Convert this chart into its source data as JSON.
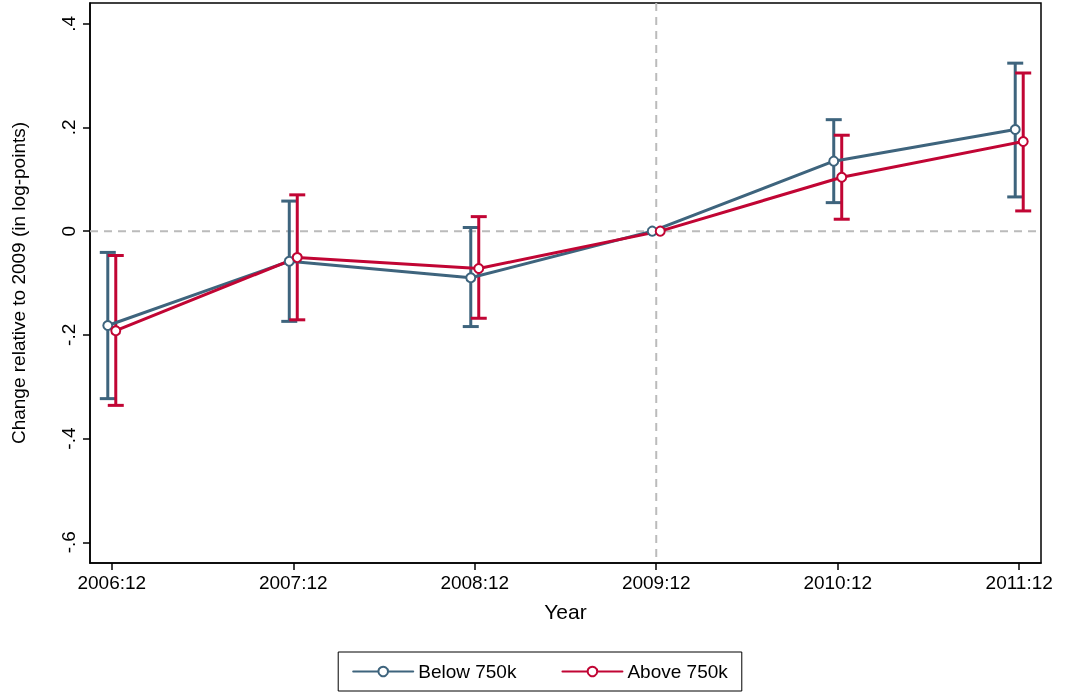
{
  "chart_data": {
    "type": "line",
    "xlabel": "Year",
    "ylabel": "Change relative to 2009 (in log-points)",
    "categories": [
      "2006:12",
      "2007:12",
      "2008:12",
      "2009:12",
      "2010:12",
      "2011:12"
    ],
    "series": [
      {
        "name": "Below 750k",
        "color": "#3e647d",
        "values": [
          -0.182,
          -0.058,
          -0.09,
          0,
          0.135,
          0.196
        ],
        "errors": [
          [
            -0.323,
            -0.041
          ],
          [
            -0.174,
            0.058
          ],
          [
            -0.184,
            0.007
          ],
          null,
          [
            0.055,
            0.215
          ],
          [
            0.066,
            0.324
          ]
        ]
      },
      {
        "name": "Above 750k",
        "color": "#c10534",
        "values": [
          -0.192,
          -0.051,
          -0.072,
          0,
          0.104,
          0.173
        ],
        "errors": [
          [
            -0.336,
            -0.047
          ],
          [
            -0.171,
            0.07
          ],
          [
            -0.168,
            0.028
          ],
          null,
          [
            0.023,
            0.185
          ],
          [
            0.039,
            0.305
          ]
        ]
      }
    ],
    "ylim": [
      -0.64,
      0.44
    ],
    "yticks": [
      {
        "value": -0.6,
        "label": "-.6"
      },
      {
        "value": -0.4,
        "label": "-.4"
      },
      {
        "value": -0.2,
        "label": "-.2"
      },
      {
        "value": 0,
        "label": "0"
      },
      {
        "value": 0.2,
        "label": ".2"
      },
      {
        "value": 0.4,
        "label": ".4"
      }
    ],
    "ref_lines": [
      {
        "axis": "y",
        "value": 0,
        "color": "#bbbbbb",
        "line_style": "dashed"
      },
      {
        "axis": "x",
        "value": "2009:12",
        "color": "#bbbbbb",
        "line_style": "dashed"
      }
    ],
    "marker": "circle",
    "line_style": "solid",
    "grid": false,
    "legend": "bottom"
  }
}
